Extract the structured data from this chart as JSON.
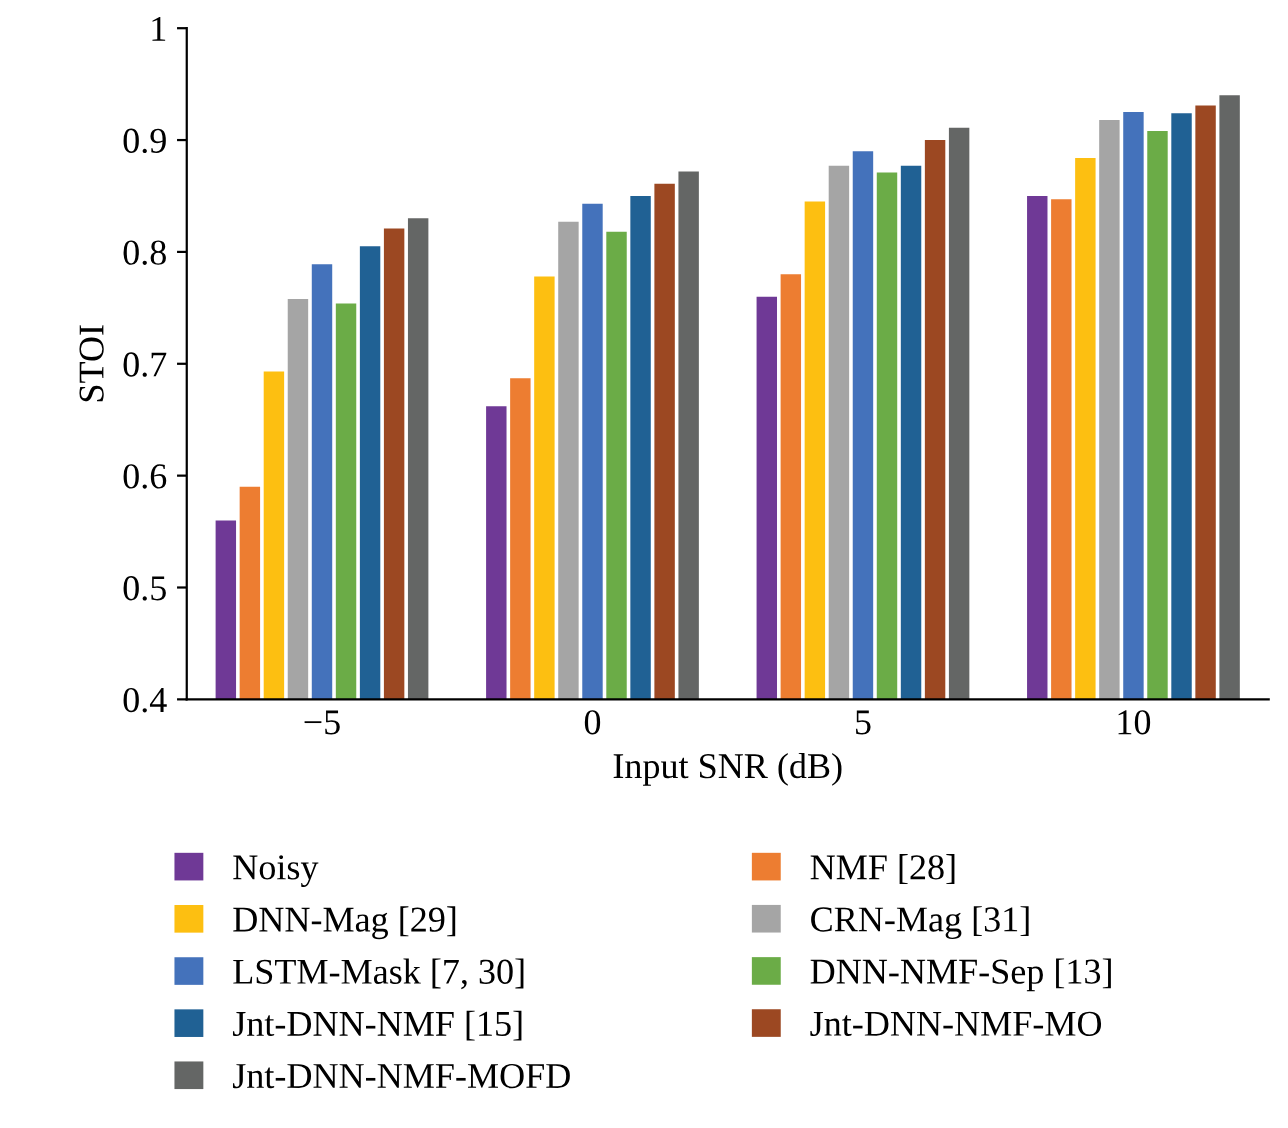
{
  "chart_data": {
    "type": "bar",
    "xlabel": "Input SNR (dB)",
    "ylabel": "STOI",
    "categories": [
      "−5",
      "0",
      "5",
      "10"
    ],
    "series": [
      {
        "name": "Noisy",
        "color": "#6f3996",
        "values": [
          0.56,
          0.662,
          0.76,
          0.85
        ]
      },
      {
        "name": "NMF [28]",
        "color": "#ed7d31",
        "values": [
          0.59,
          0.687,
          0.78,
          0.847
        ]
      },
      {
        "name": "DNN-Mag [29]",
        "color": "#fdbf11",
        "values": [
          0.693,
          0.778,
          0.845,
          0.884
        ]
      },
      {
        "name": "CRN-Mag [31]",
        "color": "#a5a5a5",
        "values": [
          0.758,
          0.827,
          0.877,
          0.918
        ]
      },
      {
        "name": "LSTM-Mask [7, 30]",
        "color": "#4472bb",
        "values": [
          0.789,
          0.843,
          0.89,
          0.925
        ]
      },
      {
        "name": "DNN-NMF-Sep [13]",
        "color": "#6bac47",
        "values": [
          0.754,
          0.818,
          0.871,
          0.908
        ]
      },
      {
        "name": "Jnt-DNN-NMF [15]",
        "color": "#206194",
        "values": [
          0.805,
          0.85,
          0.877,
          0.924
        ]
      },
      {
        "name": "Jnt-DNN-NMF-MO",
        "color": "#9c4822",
        "values": [
          0.821,
          0.861,
          0.9,
          0.931
        ]
      },
      {
        "name": "Jnt-DNN-NMF-MOFD",
        "color": "#646665",
        "values": [
          0.83,
          0.872,
          0.911,
          0.94
        ]
      }
    ],
    "ylim": [
      0.4,
      1
    ],
    "yticks": [
      0.4,
      0.5,
      0.6,
      0.7,
      0.8,
      0.9,
      1
    ],
    "grid": false,
    "legend": "bottom"
  }
}
